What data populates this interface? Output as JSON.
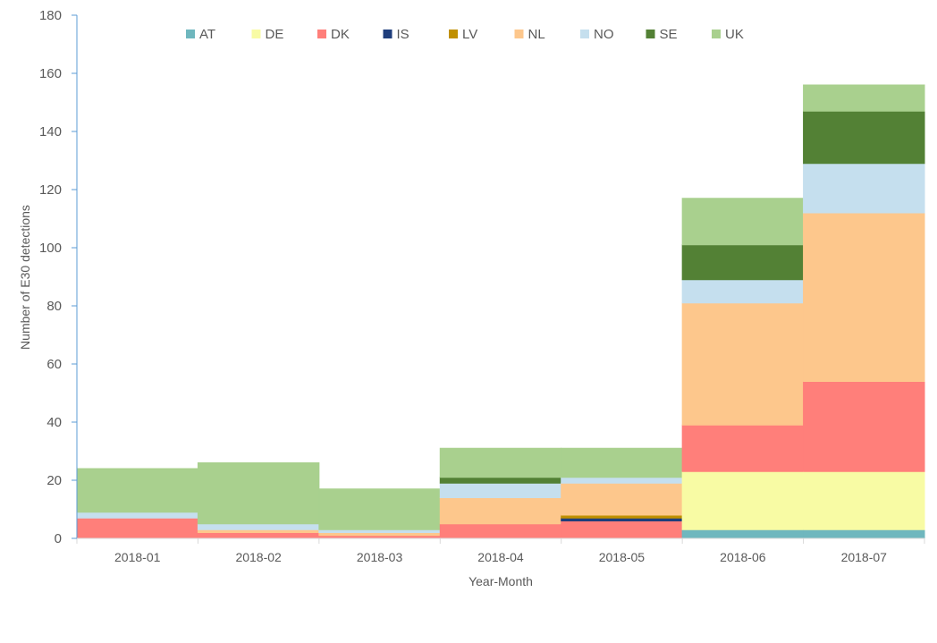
{
  "chart_data": {
    "type": "bar",
    "stacked": true,
    "title": "",
    "xlabel": "Year-Month",
    "ylabel": "Number of E30 detections",
    "ylim": [
      0,
      180
    ],
    "yticks": [
      0,
      20,
      40,
      60,
      80,
      100,
      120,
      140,
      160,
      180
    ],
    "grid": false,
    "legend_position": "top",
    "categories": [
      "2018-01",
      "2018-02",
      "2018-03",
      "2018-04",
      "2018-05",
      "2018-06",
      "2018-07"
    ],
    "series": [
      {
        "name": "AT",
        "color": "#6fb7be",
        "values": [
          0,
          0,
          0,
          0,
          0,
          3,
          3
        ]
      },
      {
        "name": "DE",
        "color": "#f8fba4",
        "values": [
          0,
          0,
          0,
          0,
          0,
          20,
          20
        ]
      },
      {
        "name": "DK",
        "color": "#ff7f7a",
        "values": [
          7,
          2,
          1,
          5,
          6,
          16,
          31
        ]
      },
      {
        "name": "IS",
        "color": "#1f3e7c",
        "values": [
          0,
          0,
          0,
          0,
          1,
          0,
          0
        ]
      },
      {
        "name": "LV",
        "color": "#c09000",
        "values": [
          0,
          0,
          0,
          0,
          1,
          0,
          0
        ]
      },
      {
        "name": "NL",
        "color": "#fdc78c",
        "values": [
          0,
          1,
          1,
          9,
          11,
          42,
          58
        ]
      },
      {
        "name": "NO",
        "color": "#c5dfee",
        "values": [
          2,
          2,
          1,
          5,
          2,
          8,
          17
        ]
      },
      {
        "name": "SE",
        "color": "#538135",
        "values": [
          0,
          0,
          0,
          2,
          0,
          12,
          18
        ]
      },
      {
        "name": "UK",
        "color": "#a9d08e",
        "values": [
          15,
          21,
          14,
          10,
          10,
          16,
          9
        ]
      }
    ]
  }
}
